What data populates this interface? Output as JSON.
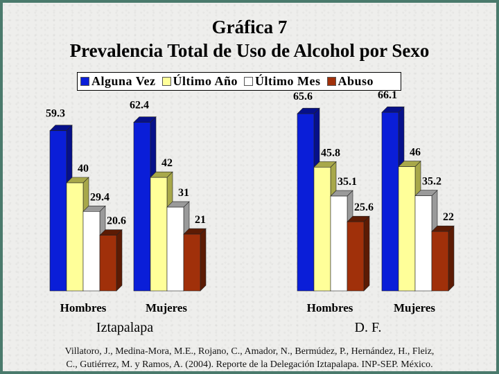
{
  "slide": {
    "title": "Gráfica 7",
    "subtitle": "Prevalencia Total de Uso de Alcohol por Sexo",
    "source_line1": "Villatoro, J., Medina-Mora, M.E., Rojano, C., Amador, N., Bermúdez, P., Hernández, H., Fleiz,",
    "source_line2": "C., Gutiérrez, M. y Ramos, A. (2004). Reporte de la Delegación Iztapalapa. INP-SEP. México."
  },
  "chart_data": {
    "type": "bar",
    "title": "Prevalencia Total de Uso de Alcohol por Sexo",
    "groups": [
      "Iztapalapa",
      "D. F."
    ],
    "categories": [
      "Hombres",
      "Mujeres",
      "Hombres",
      "Mujeres"
    ],
    "series": [
      {
        "name": "Alguna Vez",
        "color": "#0a1ed8",
        "side": "#06108a",
        "values": [
          59.3,
          62.4,
          65.6,
          66.1
        ]
      },
      {
        "name": "Último Año",
        "color": "#ffff99",
        "side": "#a8a84a",
        "values": [
          40,
          42,
          45.8,
          46
        ]
      },
      {
        "name": "Último Mes",
        "color": "#ffffff",
        "side": "#9a9a9a",
        "values": [
          29.4,
          31,
          35.1,
          35.2
        ]
      },
      {
        "name": "Abuso",
        "color": "#a0300a",
        "side": "#5c1b04",
        "values": [
          20.6,
          21,
          25.6,
          22
        ]
      }
    ],
    "value_labels": [
      [
        "59.3",
        "62.4",
        "65.6",
        "66.1"
      ],
      [
        "40",
        "42",
        "45.8",
        "46"
      ],
      [
        "29.4",
        "31",
        "35.1",
        "35.2"
      ],
      [
        "20.6",
        "21",
        "25.6",
        "22"
      ]
    ],
    "legend_position": "top",
    "grid": false
  }
}
